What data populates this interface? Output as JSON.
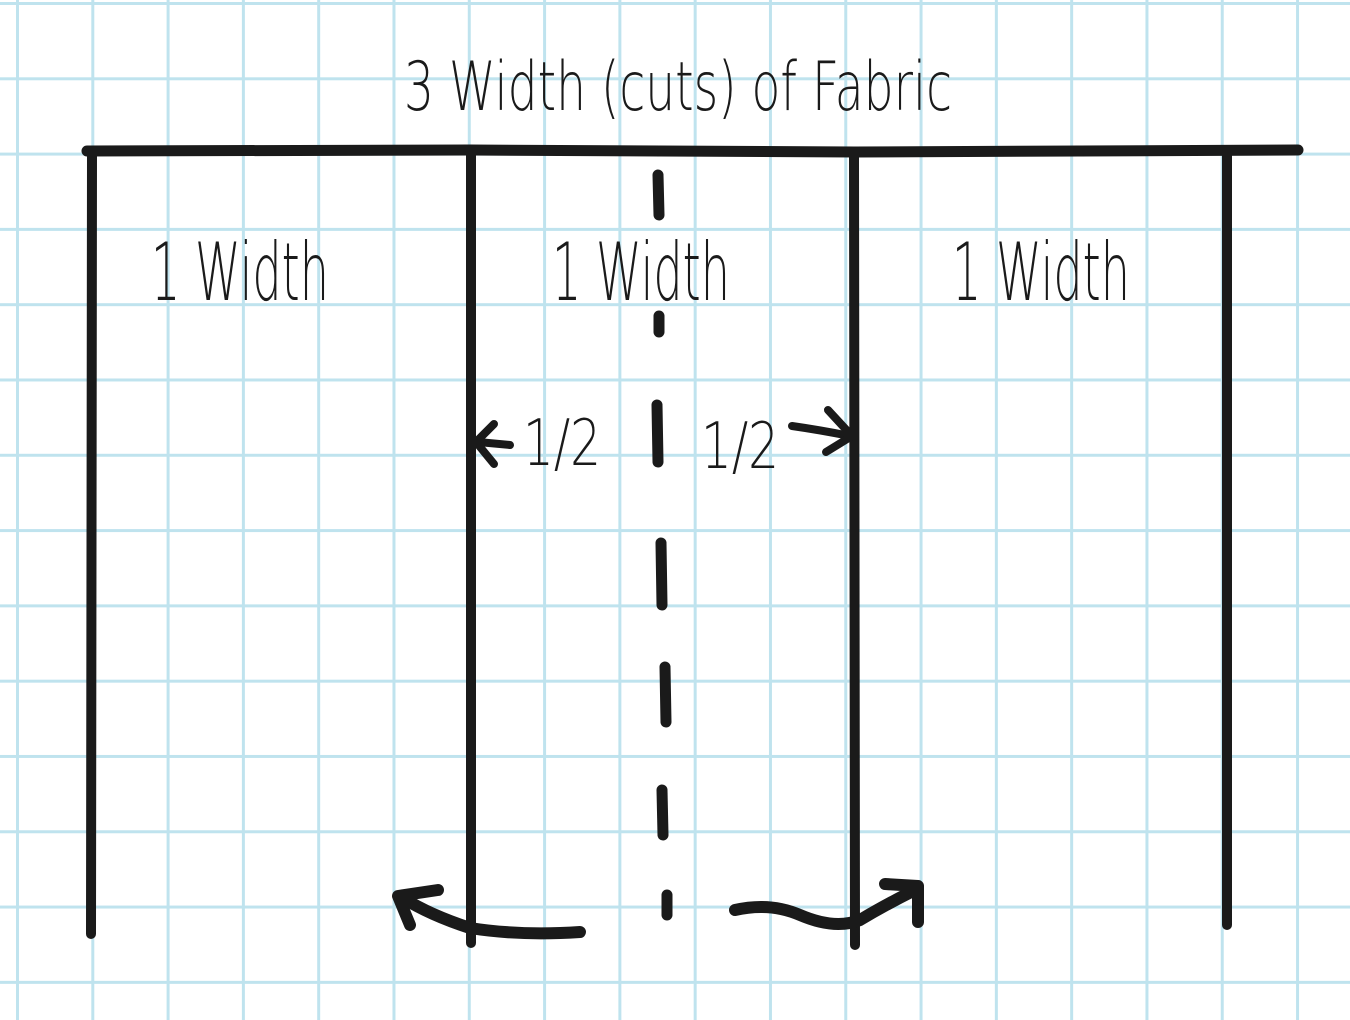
{
  "title": "3 Width (cuts) of Fabric",
  "panels": [
    {
      "label": "1 Width"
    },
    {
      "label": "1 Width"
    },
    {
      "label": "1 Width"
    }
  ],
  "half_labels": {
    "left": "1/2",
    "right": "1/2"
  },
  "colors": {
    "grid": "#bfe3ee",
    "ink": "#1a1a1a",
    "paper": "#ffffff"
  }
}
